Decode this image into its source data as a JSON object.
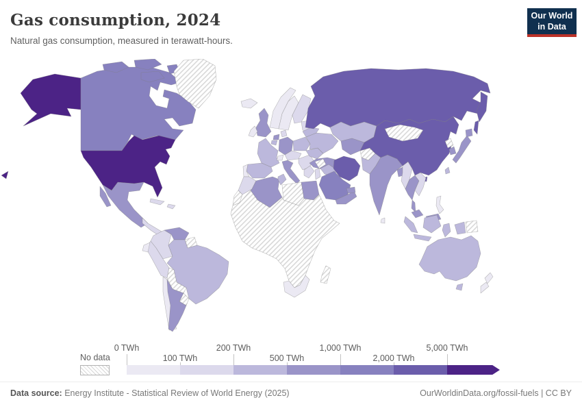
{
  "header": {
    "title": "Gas consumption, 2024",
    "subtitle": "Natural gas consumption, measured in terawatt-hours.",
    "logo": {
      "line1": "Our World",
      "line2": "in Data",
      "bg": "#10304f",
      "stripe": "#bc3228"
    }
  },
  "legend": {
    "no_data_label": "No data",
    "ticks": [
      {
        "label": "0 TWh",
        "row": "top"
      },
      {
        "label": "100 TWh",
        "row": "bottom"
      },
      {
        "label": "200 TWh",
        "row": "top"
      },
      {
        "label": "500 TWh",
        "row": "bottom"
      },
      {
        "label": "1,000 TWh",
        "row": "top"
      },
      {
        "label": "2,000 TWh",
        "row": "bottom"
      },
      {
        "label": "5,000 TWh",
        "row": "top"
      }
    ],
    "bins": [
      {
        "range": "0-100 TWh",
        "color": "#ebe9f3"
      },
      {
        "range": "100-200 TWh",
        "color": "#dcd9ec"
      },
      {
        "range": "200-500 TWh",
        "color": "#bcb8dc"
      },
      {
        "range": "500-1,000 TWh",
        "color": "#9a94c8"
      },
      {
        "range": "1,000-2,000 TWh",
        "color": "#8781bf"
      },
      {
        "range": "2,000-5,000 TWh",
        "color": "#6b5dab"
      },
      {
        "range": ">5,000 TWh",
        "color": "#4c2386"
      }
    ]
  },
  "map": {
    "no_data_fill": "hatch",
    "countries": {
      "united-states": 6,
      "canada": 4,
      "greenland": "no-data",
      "mexico": 3,
      "cuba": 1,
      "hispaniola": 1,
      "central-america": 1,
      "colombia": 1,
      "venezuela": 3,
      "guyanas": "no-data",
      "brazil": 2,
      "peru": 1,
      "ecuador": 0,
      "bolivia": "no-data",
      "paraguay": "no-data",
      "chile": 0,
      "argentina": 3,
      "iceland": 0,
      "norway": 0,
      "sweden": 0,
      "finland": 1,
      "baltics": 1,
      "ireland": 0,
      "united-kingdom": 3,
      "denmark": 1,
      "netherlands": 3,
      "belgium": 2,
      "germany": 3,
      "poland": 2,
      "czech-austria": 1,
      "france": 2,
      "switzerland": 0,
      "spain": 2,
      "portugal": 0,
      "italy": 3,
      "balkans": 1,
      "greece": 1,
      "romania": 2,
      "ukraine": 2,
      "belarus": 2,
      "turkey": 3,
      "caucasus": 3,
      "morocco": 1,
      "western-sahara": "no-data",
      "algeria": 3,
      "tunisia": 2,
      "libya": "no-data",
      "egypt": 3,
      "sub-saharan-africa": "no-data",
      "south-africa": 0,
      "madagascar": "no-data",
      "syria": "no-data",
      "iraq": 2,
      "israel-jordan": 1,
      "saudi-arabia": 4,
      "yemen-oman": 3,
      "uae-qatar": 3,
      "iran": 5,
      "russia": 5,
      "kazakhstan": 2,
      "uzbekistan-turkmenistan": 3,
      "afghanistan": "no-data",
      "pakistan": 2,
      "india": 3,
      "bangladesh": 3,
      "sri-lanka": 0,
      "myanmar": 1,
      "thailand": 3,
      "vietnam": 1,
      "malaysia": 3,
      "indonesia": 2,
      "philippines": 0,
      "china": 5,
      "mongolia": "no-data",
      "taiwan": 2,
      "north-korea": "no-data",
      "south-korea": 3,
      "japan": 3,
      "australia": 2,
      "papua-new-guinea": "no-data",
      "new-zealand": 0
    }
  },
  "footer": {
    "source_label": "Data source:",
    "source_text": " Energy Institute - Statistical Review of World Energy (2025)",
    "credit": "OurWorldinData.org/fossil-fuels | CC BY"
  },
  "chart_data": {
    "type": "choropleth",
    "title": "Gas consumption, 2024",
    "subtitle": "Natural gas consumption, measured in terawatt-hours.",
    "unit": "TWh",
    "legend_bins": [
      "0-100",
      "100-200",
      "200-500",
      "500-1,000",
      "1,000-2,000",
      "2,000-5,000",
      ">5,000",
      "No data"
    ],
    "countries": {
      "United States": ">5,000",
      "Canada": "1,000-2,000",
      "Mexico": "500-1,000",
      "Greenland": "No data",
      "Cuba": "100-200",
      "Central America": "100-200",
      "Colombia": "100-200",
      "Venezuela": "500-1,000",
      "Guyana/Suriname": "No data",
      "Brazil": "200-500",
      "Peru": "100-200",
      "Ecuador": "0-100",
      "Bolivia": "No data",
      "Paraguay": "No data",
      "Chile": "0-100",
      "Argentina": "500-1,000",
      "Iceland": "0-100",
      "Norway": "0-100",
      "Sweden": "0-100",
      "Finland": "100-200",
      "Baltic states": "100-200",
      "Ireland": "0-100",
      "United Kingdom": "500-1,000",
      "Denmark": "100-200",
      "Netherlands": "500-1,000",
      "Belgium": "200-500",
      "Germany": "500-1,000",
      "Poland": "200-500",
      "Czechia/Austria": "100-200",
      "France": "200-500",
      "Switzerland": "0-100",
      "Spain": "200-500",
      "Portugal": "0-100",
      "Italy": "500-1,000",
      "Balkans": "100-200",
      "Greece": "100-200",
      "Romania": "200-500",
      "Ukraine": "200-500",
      "Belarus": "200-500",
      "Turkey": "500-1,000",
      "Caucasus": "500-1,000",
      "Morocco": "100-200",
      "Western Sahara": "No data",
      "Algeria": "500-1,000",
      "Tunisia": "200-500",
      "Libya": "No data",
      "Egypt": "500-1,000",
      "Sub-Saharan Africa": "No data",
      "South Africa": "0-100",
      "Madagascar": "No data",
      "Syria": "No data",
      "Iraq": "200-500",
      "Israel/Jordan": "100-200",
      "Saudi Arabia": "1,000-2,000",
      "Yemen/Oman": "500-1,000",
      "UAE/Qatar": "500-1,000",
      "Iran": "2,000-5,000",
      "Russia": "2,000-5,000",
      "Kazakhstan": "200-500",
      "Uzbekistan/Turkmenistan": "500-1,000",
      "Afghanistan": "No data",
      "Pakistan": "200-500",
      "India": "500-1,000",
      "Bangladesh": "500-1,000",
      "Sri Lanka": "0-100",
      "Myanmar": "100-200",
      "Thailand": "500-1,000",
      "Vietnam": "100-200",
      "Malaysia": "500-1,000",
      "Indonesia": "200-500",
      "Philippines": "0-100",
      "China": "2,000-5,000",
      "Mongolia": "No data",
      "Taiwan": "200-500",
      "North Korea": "No data",
      "South Korea": "500-1,000",
      "Japan": "500-1,000",
      "Australia": "200-500",
      "Papua New Guinea": "No data",
      "New Zealand": "0-100"
    }
  }
}
